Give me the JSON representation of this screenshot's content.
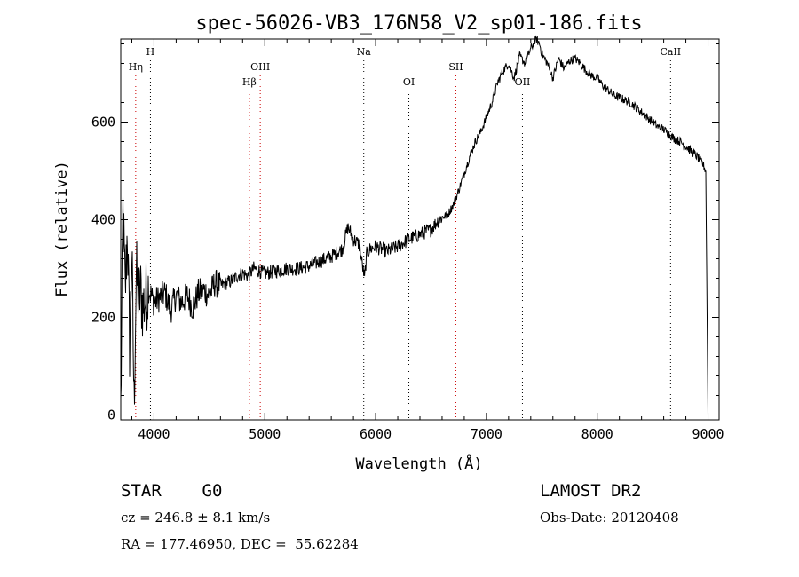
{
  "chart_data": {
    "type": "line",
    "title": "spec-56026-VB3_176N58_V2_sp01-186.fits",
    "xlabel": "Wavelength (Å)",
    "ylabel": "Flux (relative)",
    "xlim": [
      3700,
      9100
    ],
    "ylim": [
      -10,
      770
    ],
    "xticks": [
      4000,
      5000,
      6000,
      7000,
      8000,
      9000
    ],
    "yticks": [
      0,
      200,
      400,
      600
    ],
    "grid": false,
    "series": [
      {
        "color": "#000000",
        "x": [
          3700,
          3720,
          3740,
          3760,
          3780,
          3800,
          3820,
          3840,
          3860,
          3880,
          3900,
          3950,
          4000,
          4050,
          4100,
          4150,
          4200,
          4250,
          4300,
          4350,
          4400,
          4450,
          4500,
          4550,
          4600,
          4650,
          4700,
          4750,
          4800,
          4850,
          4900,
          4950,
          5000,
          5100,
          5200,
          5300,
          5400,
          5500,
          5600,
          5700,
          5750,
          5800,
          5850,
          5900,
          5920,
          5950,
          6000,
          6100,
          6200,
          6300,
          6400,
          6500,
          6550,
          6600,
          6650,
          6700,
          6750,
          6800,
          6850,
          6900,
          6950,
          7000,
          7050,
          7100,
          7150,
          7200,
          7250,
          7300,
          7350,
          7400,
          7450,
          7480,
          7500,
          7550,
          7600,
          7650,
          7700,
          7750,
          7800,
          7850,
          7900,
          7950,
          8000,
          8050,
          8100,
          8150,
          8200,
          8250,
          8300,
          8350,
          8400,
          8450,
          8500,
          8550,
          8600,
          8650,
          8700,
          8750,
          8800,
          8850,
          8900,
          8950,
          8980,
          9000
        ],
        "y": [
          10,
          420,
          250,
          380,
          140,
          330,
          20,
          290,
          240,
          250,
          220,
          260,
          230,
          240,
          250,
          215,
          245,
          230,
          245,
          220,
          250,
          255,
          245,
          270,
          265,
          270,
          275,
          285,
          290,
          285,
          300,
          295,
          290,
          295,
          300,
          300,
          305,
          315,
          325,
          340,
          385,
          360,
          350,
          280,
          330,
          340,
          345,
          335,
          345,
          360,
          370,
          380,
          395,
          405,
          410,
          430,
          460,
          495,
          530,
          560,
          580,
          610,
          640,
          680,
          705,
          720,
          690,
          735,
          720,
          750,
          770,
          760,
          740,
          720,
          690,
          730,
          710,
          725,
          730,
          720,
          705,
          695,
          690,
          675,
          665,
          655,
          650,
          645,
          640,
          630,
          620,
          610,
          600,
          590,
          585,
          575,
          565,
          560,
          550,
          540,
          530,
          515,
          500,
          0
        ]
      }
    ],
    "lines": [
      {
        "label": "Hη",
        "x": 3835,
        "color": "#cc0000",
        "row": 2
      },
      {
        "label": "H",
        "x": 3968,
        "color": "#000000",
        "row": 1
      },
      {
        "label": "Hβ",
        "x": 4861,
        "color": "#cc0000",
        "row": 3
      },
      {
        "label": "OIII",
        "x": 4959,
        "color": "#cc0000",
        "row": 2
      },
      {
        "label": "Na",
        "x": 5893,
        "color": "#000000",
        "row": 1
      },
      {
        "label": "OI",
        "x": 6300,
        "color": "#000000",
        "row": 3
      },
      {
        "label": "SII",
        "x": 6724,
        "color": "#cc0000",
        "row": 2
      },
      {
        "label": "OII",
        "x": 7325,
        "color": "#000000",
        "row": 3
      },
      {
        "label": "CaII",
        "x": 8662,
        "color": "#000000",
        "row": 1
      }
    ]
  },
  "info": {
    "class": "STAR    G0",
    "survey": "LAMOST DR2",
    "cz": "cz = 246.8 ± 8.1 km/s",
    "obs_date": "Obs-Date: 20120408",
    "coords": "RA = 177.46950, DEC =  55.62284"
  }
}
